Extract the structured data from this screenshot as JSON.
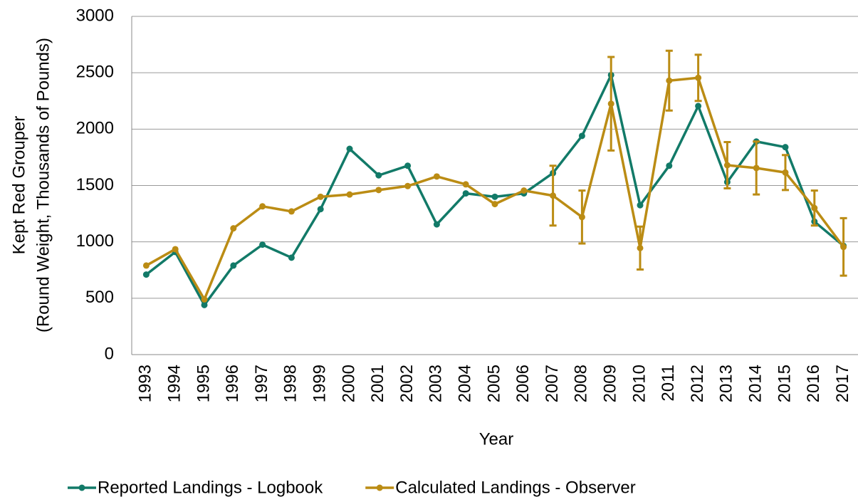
{
  "chart_data": {
    "type": "line",
    "x_label": "Year",
    "y_label": [
      "Kept Red Grouper",
      "(Round Weight, Thousands  of Pounds)"
    ],
    "categories": [
      "1993",
      "1994",
      "1995",
      "1996",
      "1997",
      "1998",
      "1999",
      "2000",
      "2001",
      "2002",
      "2003",
      "2004",
      "2005",
      "2006",
      "2007",
      "2008",
      "2009",
      "2010",
      "2011",
      "2012",
      "2013",
      "2014",
      "2015",
      "2016",
      "2017"
    ],
    "series": [
      {
        "name": "Reported Landings - Logbook",
        "color": "#127a68",
        "values": [
          710,
          910,
          440,
          790,
          975,
          860,
          1290,
          1825,
          1590,
          1675,
          1155,
          1430,
          1400,
          1430,
          1610,
          1940,
          2480,
          1325,
          1675,
          2205,
          1530,
          1890,
          1840,
          1180,
          965
        ]
      },
      {
        "name": "Calculated Landings - Observer",
        "color": "#bb8c14",
        "values": [
          790,
          935,
          490,
          1120,
          1315,
          1270,
          1400,
          1420,
          1460,
          1495,
          1580,
          1510,
          1335,
          1455,
          1410,
          1220,
          2225,
          945,
          2430,
          2455,
          1680,
          1655,
          1615,
          1300,
          955
        ],
        "errors": [
          null,
          null,
          null,
          null,
          null,
          null,
          null,
          null,
          null,
          null,
          null,
          null,
          null,
          null,
          265,
          235,
          415,
          190,
          265,
          205,
          205,
          235,
          155,
          155,
          255
        ]
      }
    ],
    "ylim": [
      0,
      3000
    ],
    "yticks": [
      0,
      500,
      1000,
      1500,
      2000,
      2500,
      3000
    ],
    "grid": true,
    "legend": "bottom"
  }
}
